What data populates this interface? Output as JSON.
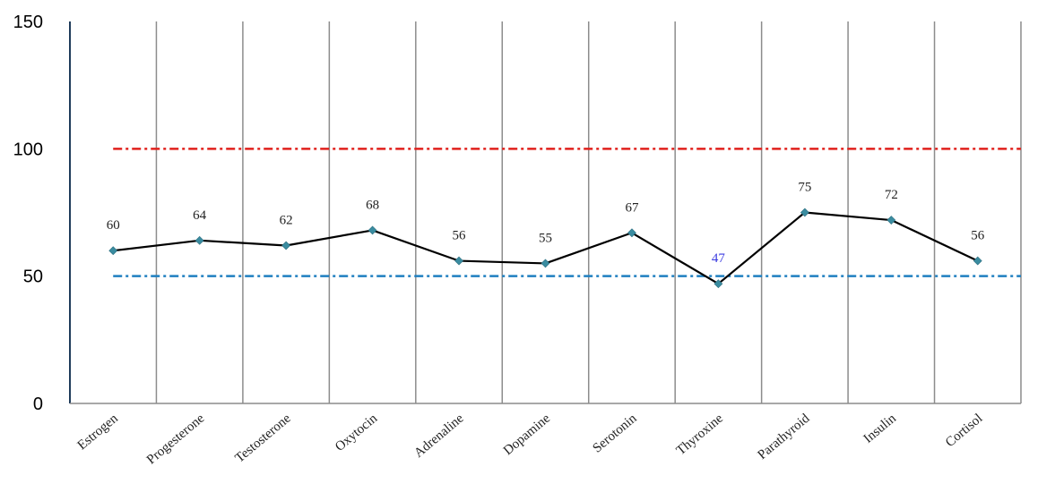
{
  "chart_data": {
    "type": "line",
    "title": "",
    "xlabel": "",
    "ylabel": "",
    "ylim": [
      0,
      150
    ],
    "yticks": [
      0,
      50,
      100,
      150
    ],
    "grid": {
      "vertical": true,
      "horizontal": false
    },
    "categories": [
      "Estrogen",
      "Progesterone",
      "Testosterone",
      "Oxytocin",
      "Adrenaline",
      "Dopamine",
      "Serotonin",
      "Thyroxine",
      "Parathyroid",
      "Insulin",
      "Cortisol"
    ],
    "series": [
      {
        "values": [
          60,
          64,
          62,
          68,
          56,
          55,
          67,
          47,
          75,
          72,
          56
        ],
        "color": "#000000",
        "marker_color": "#3a8ca0"
      }
    ],
    "reference_lines": [
      {
        "value": 100,
        "color": "#e0201c",
        "style": "dash-dot"
      },
      {
        "value": 50,
        "color": "#1f7fc0",
        "style": "dash-dot"
      }
    ],
    "data_label_colors": {
      "default": "#222222",
      "below_lower_reference": "#3a3ae0"
    }
  }
}
